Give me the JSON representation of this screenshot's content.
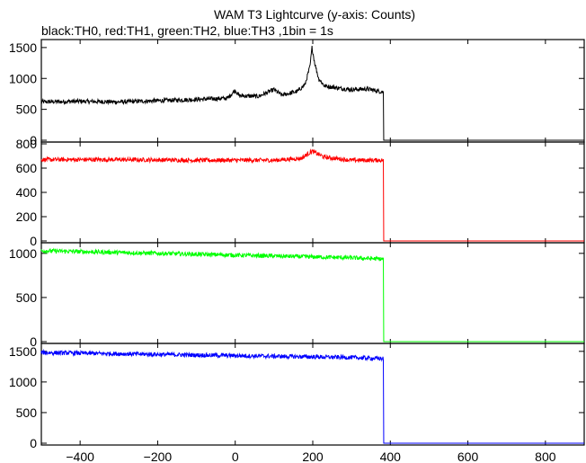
{
  "title": "WAM T3 Lightcurve (y-axis: Counts)",
  "subtitle": "black:TH0, red:TH1, green:TH2, blue:TH3 ,1bin = 1s",
  "chart_data": {
    "type": "line",
    "xlim": [
      -500,
      900
    ],
    "x_ticks": [
      -400,
      -200,
      0,
      200,
      400,
      600,
      800
    ],
    "drop_x": 383,
    "grid": false,
    "panels": [
      {
        "name": "TH0",
        "color": "#000000",
        "ylim": [
          0,
          1600
        ],
        "y_ticks": [
          0,
          500,
          1000,
          1500
        ],
        "series_points": [
          [
            -500,
            620
          ],
          [
            -400,
            630
          ],
          [
            -300,
            620
          ],
          [
            -200,
            640
          ],
          [
            -100,
            660
          ],
          [
            -20,
            680
          ],
          [
            0,
            810
          ],
          [
            10,
            720
          ],
          [
            60,
            710
          ],
          [
            100,
            820
          ],
          [
            120,
            730
          ],
          [
            160,
            790
          ],
          [
            180,
            900
          ],
          [
            193,
            1200
          ],
          [
            198,
            1500
          ],
          [
            205,
            1250
          ],
          [
            215,
            1000
          ],
          [
            230,
            880
          ],
          [
            270,
            840
          ],
          [
            300,
            820
          ],
          [
            340,
            830
          ],
          [
            382,
            780
          ],
          [
            383,
            0
          ],
          [
            900,
            0
          ]
        ]
      },
      {
        "name": "TH1",
        "color": "#ff0000",
        "ylim": [
          0,
          800
        ],
        "y_ticks": [
          0,
          200,
          400,
          600,
          800
        ],
        "series_points": [
          [
            -500,
            670
          ],
          [
            -300,
            670
          ],
          [
            -100,
            665
          ],
          [
            100,
            665
          ],
          [
            170,
            680
          ],
          [
            198,
            740
          ],
          [
            230,
            690
          ],
          [
            300,
            665
          ],
          [
            382,
            665
          ],
          [
            383,
            0
          ],
          [
            900,
            0
          ]
        ]
      },
      {
        "name": "TH2",
        "color": "#00ff00",
        "ylim": [
          0,
          1100
        ],
        "y_ticks": [
          0,
          500,
          1000
        ],
        "series_points": [
          [
            -500,
            1030
          ],
          [
            -300,
            1010
          ],
          [
            -100,
            990
          ],
          [
            100,
            970
          ],
          [
            300,
            950
          ],
          [
            382,
            935
          ],
          [
            383,
            0
          ],
          [
            900,
            0
          ]
        ]
      },
      {
        "name": "TH3",
        "color": "#0000ff",
        "ylim": [
          0,
          1600
        ],
        "y_ticks": [
          0,
          500,
          1000,
          1500
        ],
        "series_points": [
          [
            -500,
            1480
          ],
          [
            -300,
            1460
          ],
          [
            -100,
            1440
          ],
          [
            100,
            1420
          ],
          [
            300,
            1400
          ],
          [
            382,
            1380
          ],
          [
            383,
            0
          ],
          [
            900,
            0
          ]
        ]
      }
    ]
  }
}
